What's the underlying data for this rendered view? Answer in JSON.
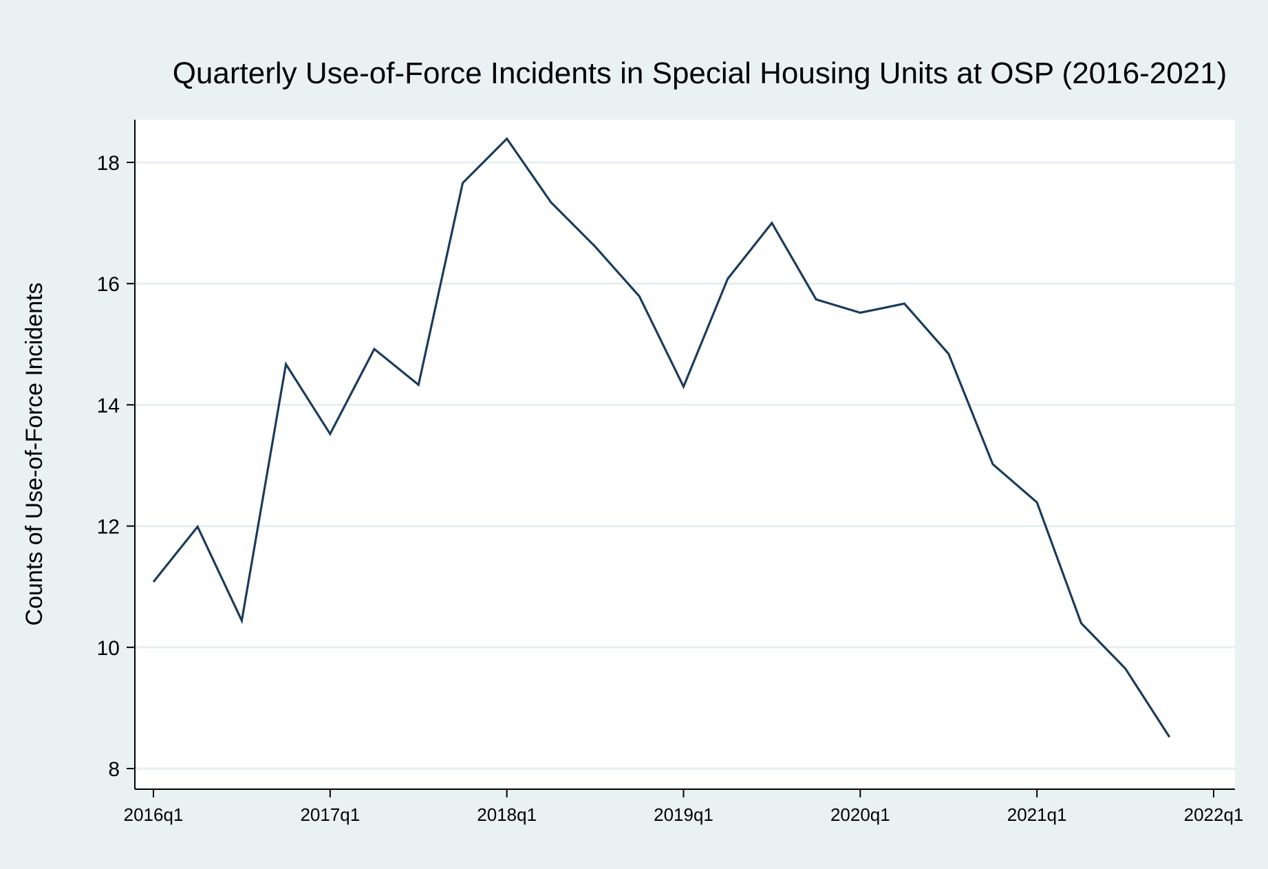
{
  "chart_data": {
    "type": "line",
    "title": "Quarterly Use-of-Force Incidents in Special Housing Units at OSP (2016-2021)",
    "xlabel": "",
    "ylabel": "Counts of Use-of-Force Incidents",
    "x_ticks": [
      "2016q1",
      "2017q1",
      "2018q1",
      "2019q1",
      "2020q1",
      "2021q1",
      "2022q1"
    ],
    "y_ticks": [
      8,
      10,
      12,
      14,
      16,
      18
    ],
    "ylim": [
      7.7,
      18.7
    ],
    "xlim": [
      "2016q1",
      "2022q1"
    ],
    "grid": true,
    "legend": "none",
    "colors": {
      "line": "#1a3b5c",
      "outer_background": "#eaf1f3",
      "plot_background": "#ffffff",
      "grid": "#e6eef1"
    },
    "series": [
      {
        "x": [
          "2016q1",
          "2016q2",
          "2016q3",
          "2016q4",
          "2017q1",
          "2017q2",
          "2017q3",
          "2017q4",
          "2018q1",
          "2018q2",
          "2018q3",
          "2018q4",
          "2019q1",
          "2019q2",
          "2019q3",
          "2019q4",
          "2020q1",
          "2020q2",
          "2020q3",
          "2020q4",
          "2021q1",
          "2021q2",
          "2021q3",
          "2021q4"
        ],
        "values": [
          11.08,
          11.99,
          10.44,
          14.67,
          13.52,
          14.92,
          14.33,
          17.66,
          18.39,
          17.34,
          16.61,
          15.79,
          14.3,
          16.08,
          17.0,
          15.74,
          15.52,
          15.67,
          14.84,
          13.02,
          12.39,
          10.4,
          9.65,
          8.52
        ]
      }
    ]
  }
}
